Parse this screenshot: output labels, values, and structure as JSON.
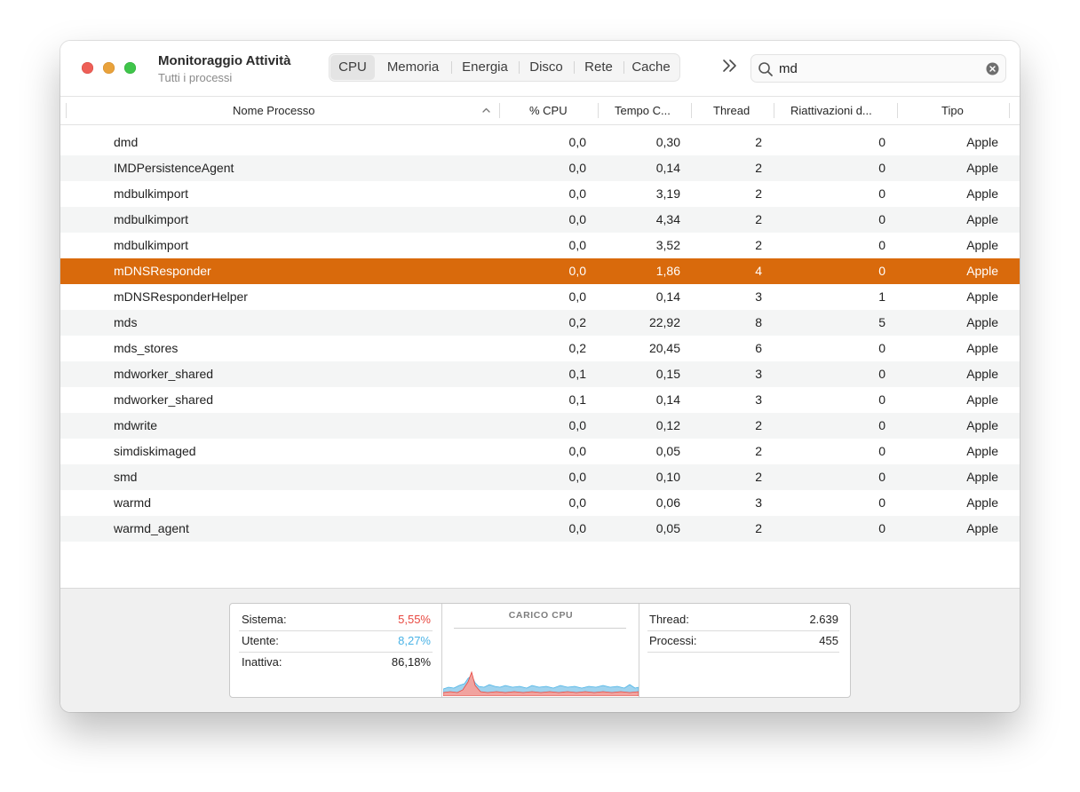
{
  "app": {
    "title": "Monitoraggio Attività",
    "subtitle": "Tutti i processi"
  },
  "tabs": [
    {
      "label": "CPU",
      "active": true
    },
    {
      "label": "Memoria",
      "active": false
    },
    {
      "label": "Energia",
      "active": false
    },
    {
      "label": "Disco",
      "active": false
    },
    {
      "label": "Rete",
      "active": false
    },
    {
      "label": "Cache",
      "active": false
    }
  ],
  "toolbar": {
    "more_icon": "double-chevron-right-icon",
    "search_value": "md",
    "search_icon": "magnifier-icon",
    "clear_icon": "clear-circle-icon"
  },
  "columns": {
    "name": "Nome Processo",
    "cpu": "% CPU",
    "time": "Tempo C...",
    "threads": "Thread",
    "wakeups": "Riattivazioni d...",
    "type": "Tipo"
  },
  "processes": [
    {
      "name": "dmd",
      "cpu": "0,0",
      "time": "0,30",
      "threads": "2",
      "wakeups": "0",
      "type": "Apple"
    },
    {
      "name": "IMDPersistenceAgent",
      "cpu": "0,0",
      "time": "0,14",
      "threads": "2",
      "wakeups": "0",
      "type": "Apple"
    },
    {
      "name": "mdbulkimport",
      "cpu": "0,0",
      "time": "3,19",
      "threads": "2",
      "wakeups": "0",
      "type": "Apple"
    },
    {
      "name": "mdbulkimport",
      "cpu": "0,0",
      "time": "4,34",
      "threads": "2",
      "wakeups": "0",
      "type": "Apple"
    },
    {
      "name": "mdbulkimport",
      "cpu": "0,0",
      "time": "3,52",
      "threads": "2",
      "wakeups": "0",
      "type": "Apple"
    },
    {
      "name": "mDNSResponder",
      "cpu": "0,0",
      "time": "1,86",
      "threads": "4",
      "wakeups": "0",
      "type": "Apple",
      "selected": true
    },
    {
      "name": "mDNSResponderHelper",
      "cpu": "0,0",
      "time": "0,14",
      "threads": "3",
      "wakeups": "1",
      "type": "Apple"
    },
    {
      "name": "mds",
      "cpu": "0,2",
      "time": "22,92",
      "threads": "8",
      "wakeups": "5",
      "type": "Apple"
    },
    {
      "name": "mds_stores",
      "cpu": "0,2",
      "time": "20,45",
      "threads": "6",
      "wakeups": "0",
      "type": "Apple"
    },
    {
      "name": "mdworker_shared",
      "cpu": "0,1",
      "time": "0,15",
      "threads": "3",
      "wakeups": "0",
      "type": "Apple"
    },
    {
      "name": "mdworker_shared",
      "cpu": "0,1",
      "time": "0,14",
      "threads": "3",
      "wakeups": "0",
      "type": "Apple"
    },
    {
      "name": "mdwrite",
      "cpu": "0,0",
      "time": "0,12",
      "threads": "2",
      "wakeups": "0",
      "type": "Apple"
    },
    {
      "name": "simdiskimaged",
      "cpu": "0,0",
      "time": "0,05",
      "threads": "2",
      "wakeups": "0",
      "type": "Apple"
    },
    {
      "name": "smd",
      "cpu": "0,0",
      "time": "0,10",
      "threads": "2",
      "wakeups": "0",
      "type": "Apple"
    },
    {
      "name": "warmd",
      "cpu": "0,0",
      "time": "0,06",
      "threads": "3",
      "wakeups": "0",
      "type": "Apple"
    },
    {
      "name": "warmd_agent",
      "cpu": "0,0",
      "time": "0,05",
      "threads": "2",
      "wakeups": "0",
      "type": "Apple"
    }
  ],
  "stats": {
    "system_label": "Sistema:",
    "system_value": "5,55%",
    "user_label": "Utente:",
    "user_value": "8,27%",
    "idle_label": "Inattiva:",
    "idle_value": "86,18%",
    "chart_title": "CARICO CPU",
    "threads_label": "Thread:",
    "threads_value": "2.639",
    "processes_label": "Processi:",
    "processes_value": "455"
  },
  "colors": {
    "selection": "#d96a0c",
    "system": "#e8473f",
    "user": "#4ab3e6"
  }
}
